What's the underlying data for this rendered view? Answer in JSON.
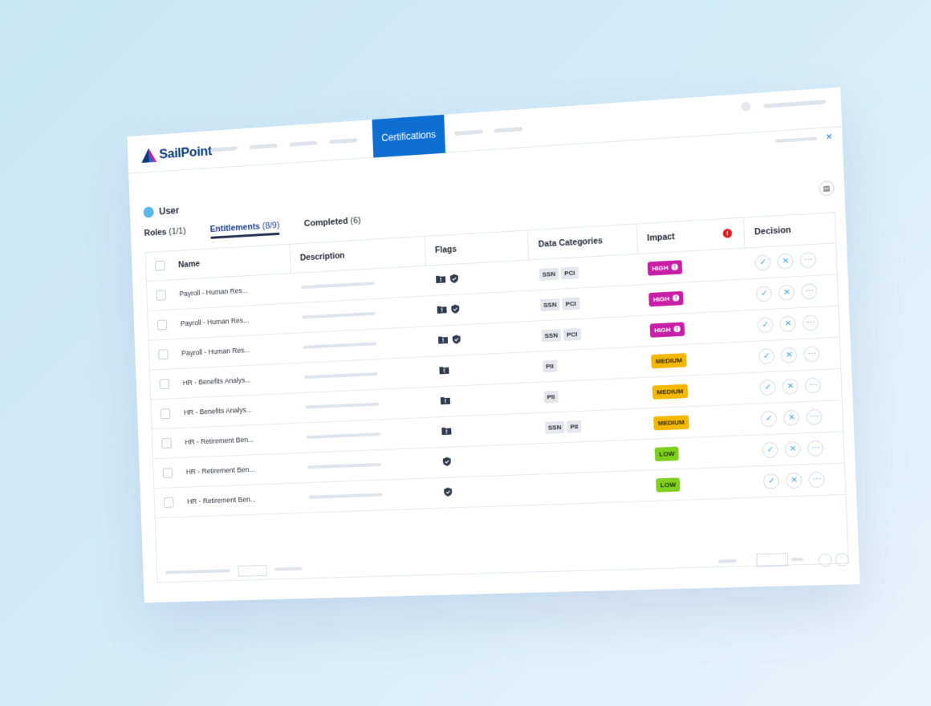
{
  "brand": {
    "name": "SailPoint",
    "primary_color": "#0d6fd1"
  },
  "nav": {
    "active_tab": "Certifications"
  },
  "window": {
    "close_symbol": "×"
  },
  "user": {
    "label": "User"
  },
  "tabs": [
    {
      "label": "Roles",
      "count": "(1/1)"
    },
    {
      "label": "Entitlements",
      "count": "(8/9)"
    },
    {
      "label": "Completed",
      "count": "(6)"
    }
  ],
  "columns": {
    "name": "Name",
    "description": "Description",
    "flags": "Flags",
    "data_categories": "Data Categories",
    "impact": "Impact",
    "decision": "Decision"
  },
  "impact_colors": {
    "HIGH": "#c81fa6",
    "MEDIUM": "#f5b800",
    "LOW": "#7fcf1f"
  },
  "rows": [
    {
      "name": "Payroll - Human Res...",
      "flags": [
        "folder-alert-icon",
        "shield-check-icon"
      ],
      "categories": [
        "SSN",
        "PCI"
      ],
      "impact": "HIGH"
    },
    {
      "name": "Payroll - Human Res...",
      "flags": [
        "folder-alert-icon",
        "shield-check-icon"
      ],
      "categories": [
        "SSN",
        "PCI"
      ],
      "impact": "HIGH"
    },
    {
      "name": "Payroll - Human Res...",
      "flags": [
        "folder-alert-icon",
        "shield-check-icon"
      ],
      "categories": [
        "SSN",
        "PCI"
      ],
      "impact": "HIGH"
    },
    {
      "name": "HR - Benefits Analys...",
      "flags": [
        "folder-alert-icon"
      ],
      "categories": [
        "PII"
      ],
      "impact": "MEDIUM"
    },
    {
      "name": "HR - Benefits Analys...",
      "flags": [
        "folder-alert-icon"
      ],
      "categories": [
        "PII"
      ],
      "impact": "MEDIUM"
    },
    {
      "name": "HR - Retirement Ben...",
      "flags": [
        "folder-alert-icon"
      ],
      "categories": [
        "SSN",
        "PII"
      ],
      "impact": "MEDIUM"
    },
    {
      "name": "HR - Retirement Ben...",
      "flags": [
        "shield-check-icon"
      ],
      "categories": [],
      "impact": "LOW"
    },
    {
      "name": "HR - Retirement Ben...",
      "flags": [
        "shield-check-icon"
      ],
      "categories": [],
      "impact": "LOW"
    }
  ],
  "decision_icons": [
    "approve-check-icon",
    "revoke-x-icon",
    "more-options-icon"
  ]
}
